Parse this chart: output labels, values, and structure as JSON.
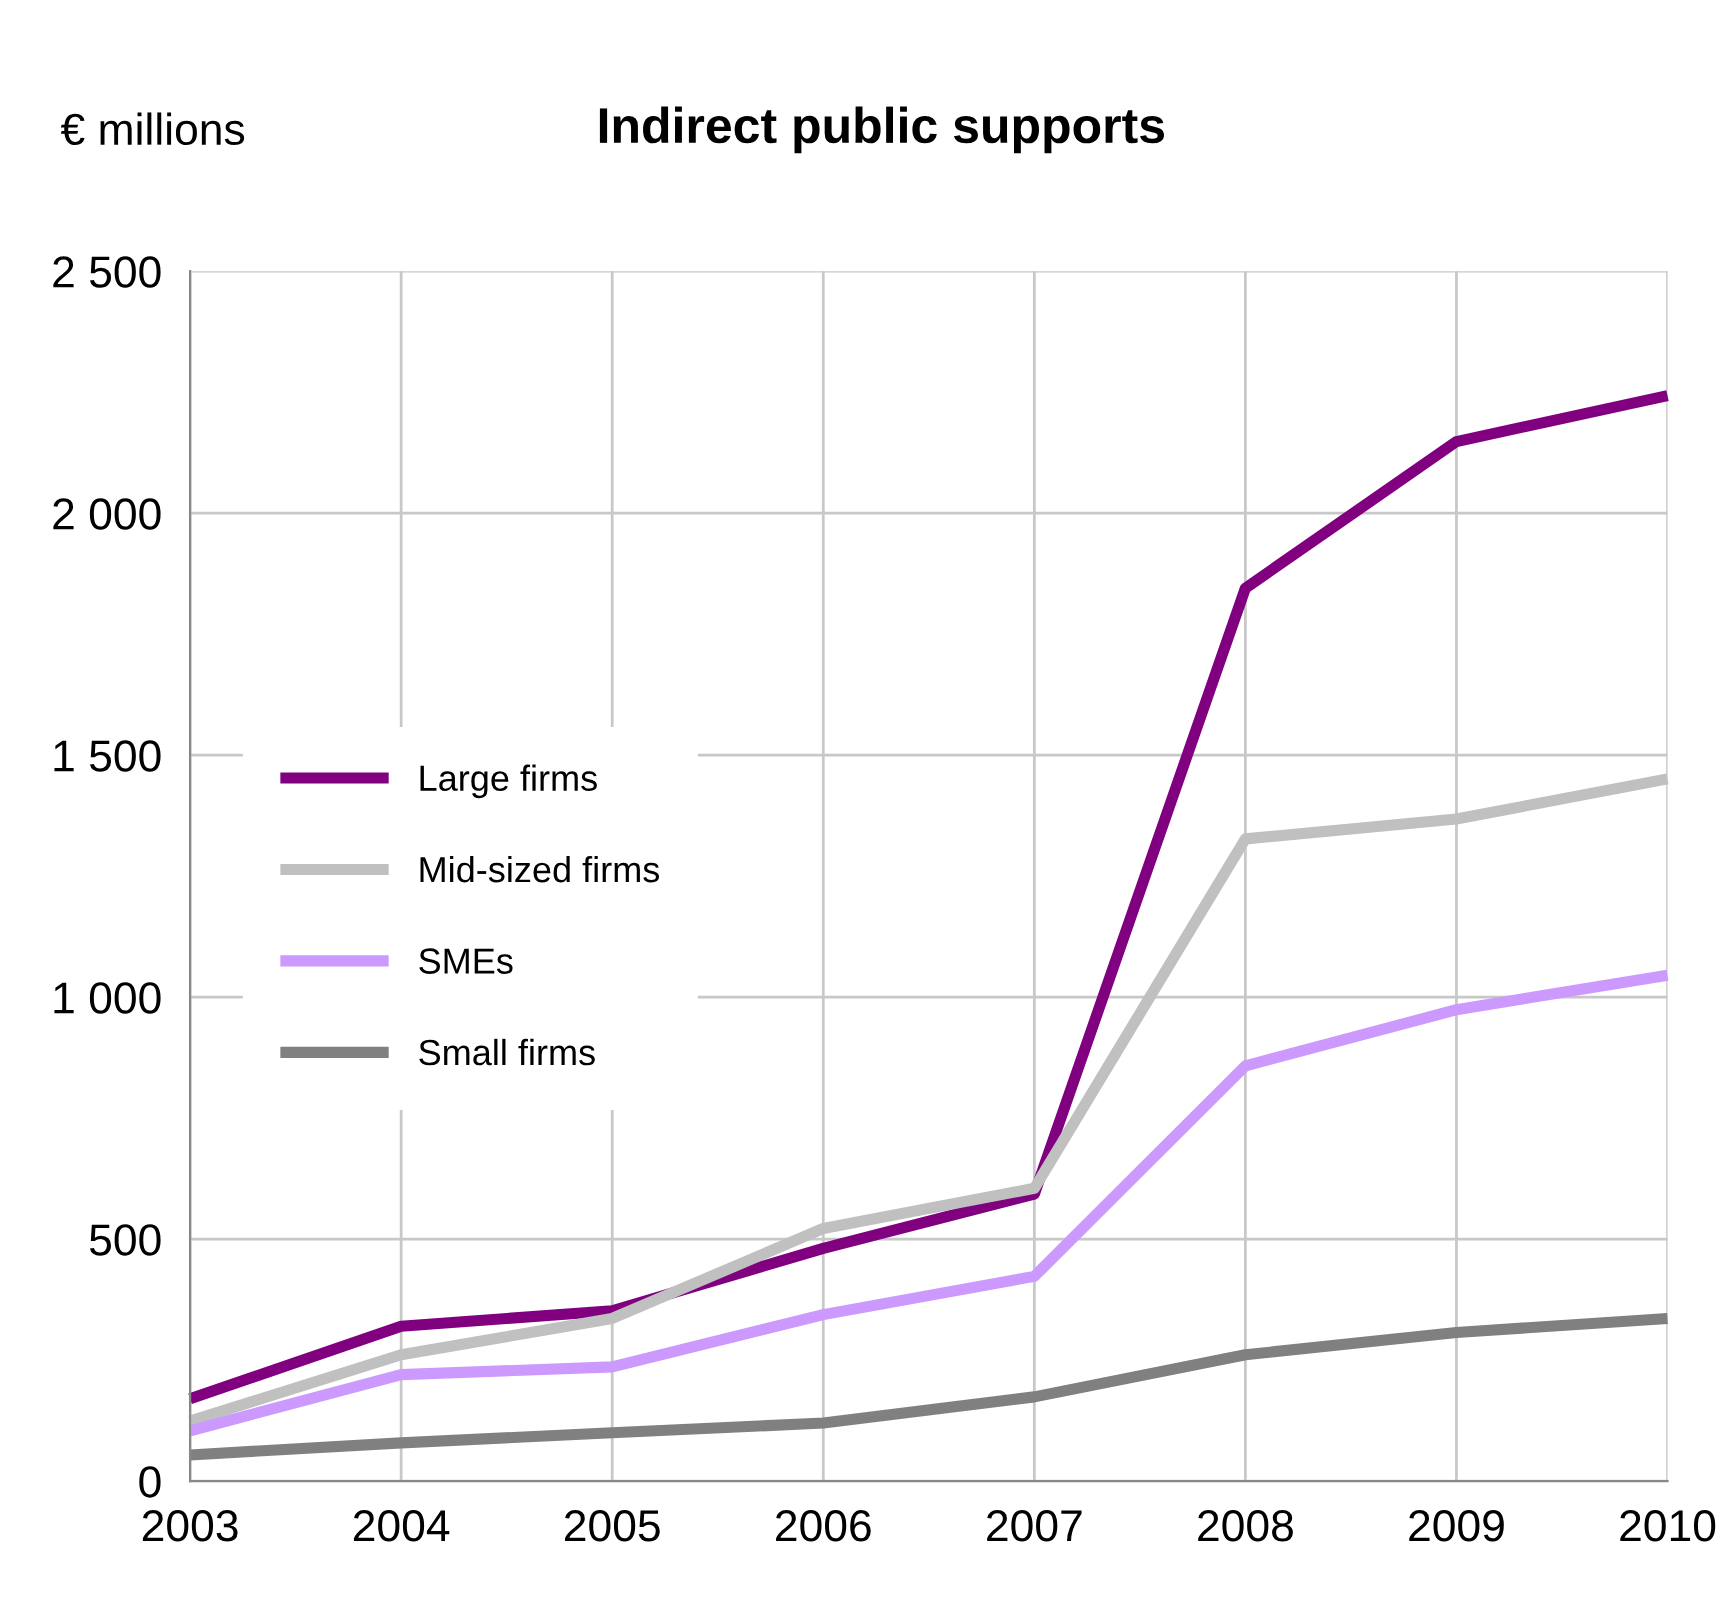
{
  "chart_data": {
    "type": "line",
    "title": "Indirect public supports",
    "ylabel": "€ millions",
    "x": [
      2003,
      2004,
      2005,
      2006,
      2007,
      2008,
      2009,
      2010
    ],
    "series": [
      {
        "name": "Large firms",
        "color": "#800080",
        "values": [
          170,
          320,
          352,
          481,
          593,
          1845,
          2148,
          2243
        ]
      },
      {
        "name": "Mid-sized firms",
        "color": "#c0c0c0",
        "values": [
          124,
          261,
          336,
          522,
          605,
          1327,
          1368,
          1451
        ]
      },
      {
        "name": "SMEs",
        "color": "#cc99ff",
        "values": [
          104,
          220,
          236,
          344,
          423,
          858,
          974,
          1045
        ]
      },
      {
        "name": "Small firms",
        "color": "#808080",
        "values": [
          54,
          79,
          100,
          120,
          174,
          261,
          307,
          336
        ]
      }
    ],
    "xlim": [
      2003,
      2010
    ],
    "xticks": [
      2003,
      2004,
      2005,
      2006,
      2007,
      2008,
      2009,
      2010
    ],
    "ylim": [
      0,
      2500
    ],
    "yticks": [
      0,
      500,
      {
        "value": 1000,
        "label": "1 000"
      },
      {
        "value": 1500,
        "label": "1 500"
      },
      {
        "value": 2000,
        "label": "2 000"
      },
      {
        "value": 2500,
        "label": "2 500"
      }
    ],
    "grid": true,
    "legend": "center left",
    "marker": "none",
    "line_style": "solid"
  }
}
